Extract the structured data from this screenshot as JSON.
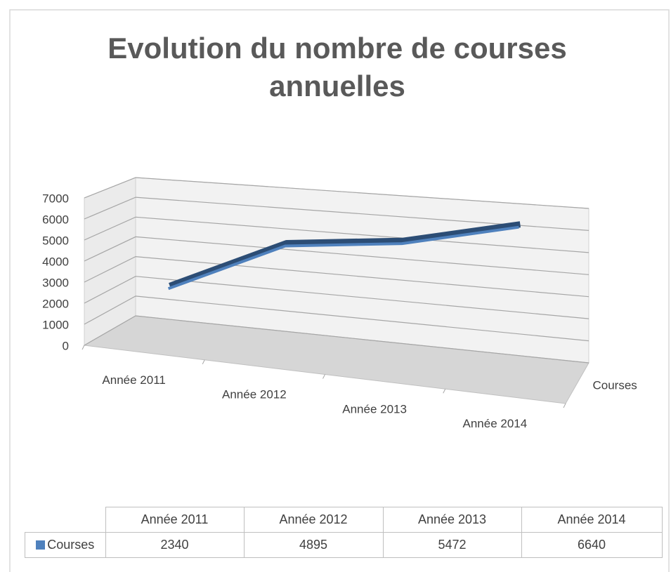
{
  "chart_data": {
    "type": "line3d",
    "title": "Evolution du nombre de courses annuelles",
    "categories": [
      "Année 2011",
      "Année 2012",
      "Année 2013",
      "Année 2014"
    ],
    "series": [
      {
        "name": "Courses",
        "color": "#4f81bd",
        "values": [
          2340,
          4895,
          5472,
          6640
        ]
      }
    ],
    "ylim": [
      0,
      7000
    ],
    "yticks": [
      0,
      1000,
      2000,
      3000,
      4000,
      5000,
      6000,
      7000
    ],
    "grid": true
  }
}
